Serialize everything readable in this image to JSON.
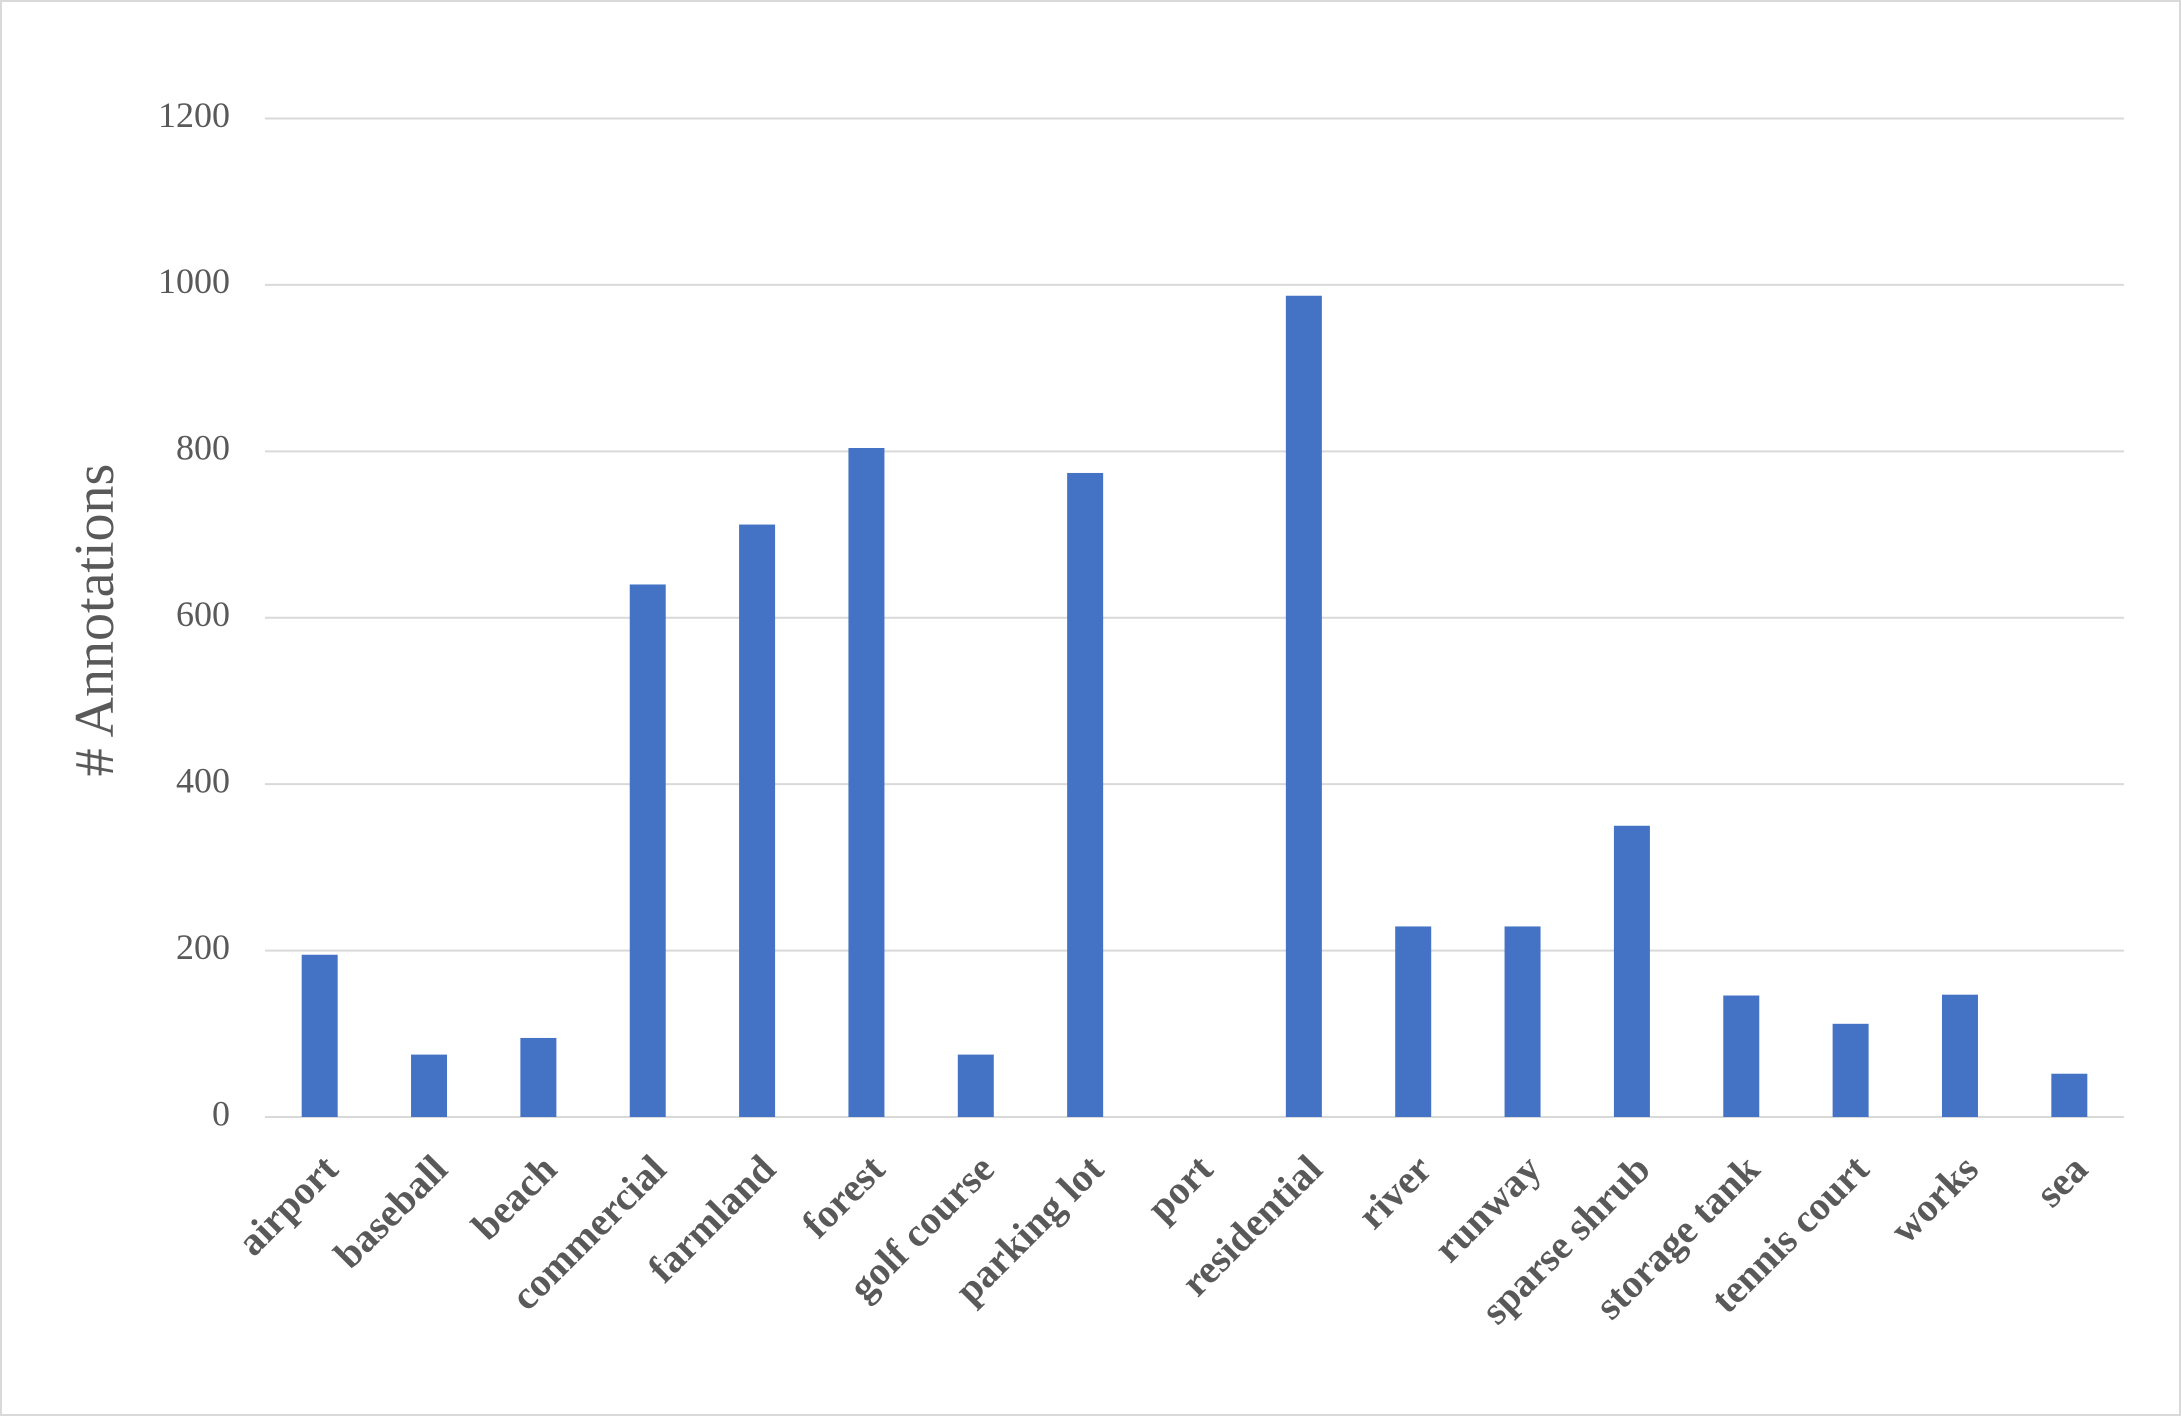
{
  "chart_data": {
    "type": "bar",
    "y_label": "# Annotations",
    "categories": [
      "airport",
      "baseball",
      "beach",
      "commercial",
      "farmland",
      "forest",
      "golf course",
      "parking lot",
      "port",
      "residential",
      "river",
      "runway",
      "sparse shrub",
      "storage tank",
      "tennis court",
      "works",
      "sea"
    ],
    "values": [
      195,
      75,
      95,
      640,
      712,
      804,
      75,
      774,
      0,
      987,
      229,
      229,
      350,
      146,
      112,
      147,
      52
    ],
    "color": "#4472c4",
    "ylim": [
      0,
      1200
    ],
    "yticks": [
      0,
      200,
      400,
      600,
      800,
      1000,
      1200
    ],
    "grid": true
  }
}
